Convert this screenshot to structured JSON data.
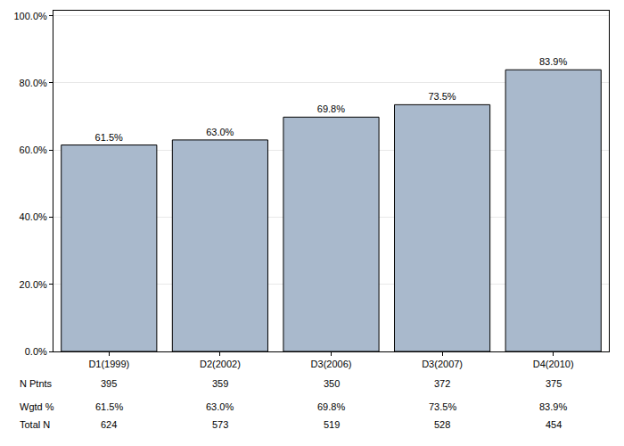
{
  "chart_data": {
    "type": "bar",
    "categories": [
      "D1(1999)",
      "D2(2002)",
      "D3(2006)",
      "D3(2007)",
      "D4(2010)"
    ],
    "values": [
      61.5,
      63.0,
      69.8,
      73.5,
      83.9
    ],
    "value_labels": [
      "61.5%",
      "63.0%",
      "69.8%",
      "73.5%",
      "83.9%"
    ],
    "data_labels": true,
    "color": "#a9b9cc",
    "ylim": [
      0,
      101.5
    ],
    "yticks": [
      {
        "value": 0,
        "label": "0.0%"
      },
      {
        "value": 20,
        "label": "20.0%"
      },
      {
        "value": 40,
        "label": "40.0%"
      },
      {
        "value": 60,
        "label": "60.0%"
      },
      {
        "value": 80,
        "label": "80.0%"
      },
      {
        "value": 100,
        "label": "100.0%"
      }
    ],
    "grid": true
  },
  "table": {
    "rows": [
      {
        "label": "N Ptnts",
        "values": [
          "395",
          "359",
          "350",
          "372",
          "375"
        ]
      },
      {
        "label": "Wgtd %",
        "values": [
          "61.5%",
          "63.0%",
          "69.8%",
          "73.5%",
          "83.9%"
        ]
      },
      {
        "label": "Total N",
        "values": [
          "624",
          "573",
          "519",
          "528",
          "454"
        ]
      }
    ]
  }
}
